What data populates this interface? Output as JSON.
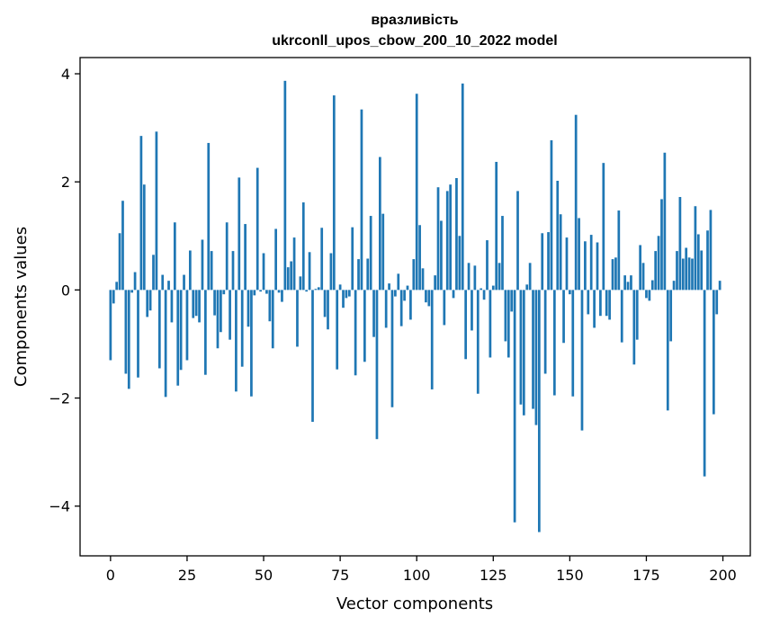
{
  "chart_data": {
    "type": "bar",
    "title": "вразливість",
    "subtitle": "ukrconll_upos_cbow_200_10_2022 model",
    "xlabel": "Vector components",
    "ylabel": "Components values",
    "xlim": [
      -9.95,
      208.95
    ],
    "ylim": [
      -4.92,
      4.3
    ],
    "xticks": [
      0,
      25,
      50,
      75,
      100,
      125,
      150,
      175,
      200
    ],
    "xtick_labels": [
      "0",
      "25",
      "50",
      "75",
      "100",
      "125",
      "150",
      "175",
      "200"
    ],
    "yticks": [
      -4,
      -2,
      0,
      2,
      4
    ],
    "ytick_labels": [
      "−4",
      "−2",
      "0",
      "2",
      "4"
    ],
    "grid": false,
    "bar_color": "#1f77b4",
    "x": [
      0,
      1,
      2,
      3,
      4,
      5,
      6,
      7,
      8,
      9,
      10,
      11,
      12,
      13,
      14,
      15,
      16,
      17,
      18,
      19,
      20,
      21,
      22,
      23,
      24,
      25,
      26,
      27,
      28,
      29,
      30,
      31,
      32,
      33,
      34,
      35,
      36,
      37,
      38,
      39,
      40,
      41,
      42,
      43,
      44,
      45,
      46,
      47,
      48,
      49,
      50,
      51,
      52,
      53,
      54,
      55,
      56,
      57,
      58,
      59,
      60,
      61,
      62,
      63,
      64,
      65,
      66,
      67,
      68,
      69,
      70,
      71,
      72,
      73,
      74,
      75,
      76,
      77,
      78,
      79,
      80,
      81,
      82,
      83,
      84,
      85,
      86,
      87,
      88,
      89,
      90,
      91,
      92,
      93,
      94,
      95,
      96,
      97,
      98,
      99,
      100,
      101,
      102,
      103,
      104,
      105,
      106,
      107,
      108,
      109,
      110,
      111,
      112,
      113,
      114,
      115,
      116,
      117,
      118,
      119,
      120,
      121,
      122,
      123,
      124,
      125,
      126,
      127,
      128,
      129,
      130,
      131,
      132,
      133,
      134,
      135,
      136,
      137,
      138,
      139,
      140,
      141,
      142,
      143,
      144,
      145,
      146,
      147,
      148,
      149,
      150,
      151,
      152,
      153,
      154,
      155,
      156,
      157,
      158,
      159,
      160,
      161,
      162,
      163,
      164,
      165,
      166,
      167,
      168,
      169,
      170,
      171,
      172,
      173,
      174,
      175,
      176,
      177,
      178,
      179,
      180,
      181,
      182,
      183,
      184,
      185,
      186,
      187,
      188,
      189,
      190,
      191,
      192,
      193,
      194,
      195,
      196,
      197,
      198,
      199
    ],
    "values": [
      -1.3,
      -0.25,
      0.15,
      1.05,
      1.65,
      -1.55,
      -1.83,
      -0.05,
      0.33,
      -1.62,
      2.85,
      1.95,
      -0.5,
      -0.38,
      0.65,
      2.93,
      -1.45,
      0.28,
      -1.98,
      0.17,
      -0.6,
      1.25,
      -1.77,
      -1.48,
      0.28,
      -1.3,
      0.73,
      -0.52,
      -0.48,
      -0.6,
      0.93,
      -1.57,
      2.72,
      0.72,
      -0.47,
      -1.08,
      -0.78,
      -0.08,
      1.25,
      -0.92,
      0.72,
      -1.88,
      2.08,
      -1.42,
      1.22,
      -0.68,
      -1.97,
      -0.1,
      2.26,
      -0.03,
      0.68,
      -0.07,
      -0.58,
      -1.08,
      1.13,
      -0.05,
      -0.22,
      3.87,
      0.42,
      0.53,
      0.97,
      -1.05,
      0.25,
      1.62,
      -0.03,
      0.7,
      -2.44,
      0.02,
      0.05,
      1.15,
      -0.5,
      -0.73,
      0.68,
      3.6,
      -1.47,
      0.1,
      -0.33,
      -0.15,
      -0.12,
      1.16,
      -1.58,
      0.57,
      3.34,
      -1.33,
      0.58,
      1.37,
      -0.87,
      -2.76,
      2.46,
      1.41,
      -0.7,
      0.12,
      -2.17,
      -0.12,
      0.3,
      -0.67,
      -0.2,
      0.08,
      -0.55,
      0.57,
      3.63,
      1.2,
      0.4,
      -0.23,
      -0.3,
      -1.84,
      0.27,
      1.9,
      1.28,
      -0.65,
      1.83,
      1.95,
      -0.15,
      2.07,
      1.0,
      3.82,
      -1.28,
      0.5,
      -0.75,
      0.45,
      -1.92,
      0.03,
      -0.18,
      0.92,
      -1.25,
      0.08,
      2.37,
      0.5,
      1.37,
      -0.95,
      -1.25,
      -0.4,
      -4.3,
      1.83,
      -2.12,
      -2.32,
      0.1,
      0.5,
      -2.2,
      -2.5,
      -4.48,
      1.05,
      -1.55,
      1.07,
      2.77,
      -1.95,
      2.02,
      1.4,
      -0.98,
      0.97,
      -0.08,
      -1.97,
      3.24,
      1.33,
      -2.6,
      0.9,
      -0.45,
      1.02,
      -0.7,
      0.88,
      -0.48,
      2.35,
      -0.48,
      -0.55,
      0.57,
      0.6,
      1.47,
      -0.97,
      0.27,
      0.15,
      0.27,
      -1.38,
      -0.92,
      0.83,
      0.5,
      -0.15,
      -0.2,
      0.18,
      0.72,
      1.0,
      1.68,
      2.54,
      -2.23,
      -0.95,
      0.17,
      0.72,
      1.72,
      0.58,
      0.78,
      0.6,
      0.58,
      1.55,
      1.03,
      0.73,
      -3.45,
      1.1,
      1.48,
      -2.3,
      -0.45,
      0.17
    ]
  }
}
